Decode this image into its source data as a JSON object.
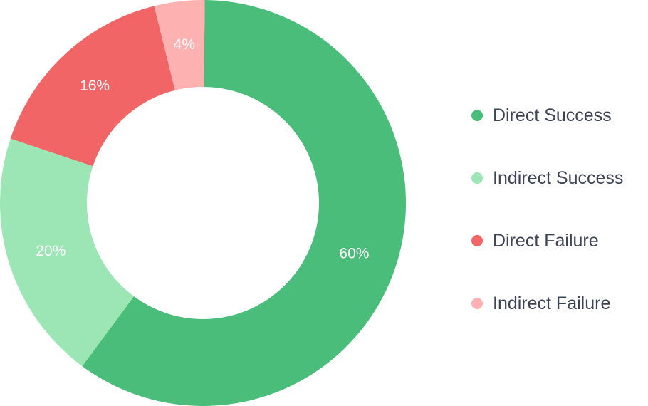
{
  "chart_data": {
    "type": "pie",
    "variant": "donut",
    "slices": [
      {
        "label": "Direct Success",
        "value": 60,
        "display": "60%",
        "color": "#4abd7a"
      },
      {
        "label": "Indirect Success",
        "value": 20,
        "display": "20%",
        "color": "#9be6b4"
      },
      {
        "label": "Direct Failure",
        "value": 16,
        "display": "16%",
        "color": "#f26566"
      },
      {
        "label": "Indirect Failure",
        "value": 4,
        "display": "4%",
        "color": "#feb1b1"
      }
    ],
    "legend_position": "right",
    "colors": {
      "legend_text": "#3d4456",
      "slice_label_text": "#ffffff"
    }
  }
}
